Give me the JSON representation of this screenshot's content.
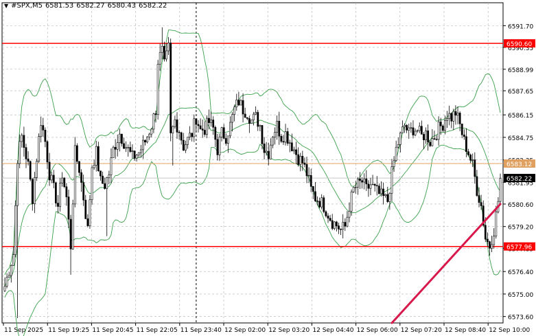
{
  "header": {
    "symbol": "#SPX,M5",
    "open": "6581.53",
    "high": "6582.27",
    "low": "6580.43",
    "close": "6582.22"
  },
  "colors": {
    "candle": "#000000",
    "bands": "#3aa04a",
    "level_line": "#ff0000",
    "current_price_line": "#c8c8c8",
    "orange_line": "#e0a060",
    "trendline": "#d8184a",
    "grid": "#b0b0b0",
    "tag_red": "#ff0000",
    "tag_orange": "#e0a060",
    "tag_black": "#000000"
  },
  "chart_data": {
    "type": "candlestick",
    "title": "",
    "xlabel": "",
    "ylabel": "",
    "ylim": [
      6573.2,
      6592.7
    ],
    "grid": true,
    "y_ticks": [
      "6591.70",
      "6590.35",
      "6588.99",
      "6587.65",
      "6586.15",
      "6584.75",
      "6583.35",
      "6581.95",
      "6580.60",
      "6579.20",
      "6577.85",
      "6576.40",
      "6575.00",
      "6573.60"
    ],
    "x_ticks": [
      "11 Sep 2025",
      "11 Sep 19:25",
      "11 Sep 20:45",
      "11 Sep 22:05",
      "11 Sep 23:40",
      "12 Sep 02:00",
      "12 Sep 03:20",
      "12 Sep 04:40",
      "12 Sep 06:00",
      "12 Sep 07:20",
      "12 Sep 08:40",
      "12 Sep 10:00"
    ],
    "horizontal_lines": [
      {
        "label": "6590.60",
        "value": 6590.6,
        "style": "red"
      },
      {
        "label": "6583.12",
        "value": 6583.12,
        "style": "orange"
      },
      {
        "label": "6582.22",
        "value": 6582.22,
        "style": "current"
      },
      {
        "label": "6577.96",
        "value": 6577.96,
        "style": "red"
      }
    ],
    "trendline": {
      "start_bar": 182,
      "start_value": 6573.2,
      "end_bar": 233,
      "end_value": 6580.6
    },
    "session_separator_bar": 90,
    "bar_count": 234,
    "anchors": [
      [
        0,
        6575.5
      ],
      [
        4,
        6577.5
      ],
      [
        6,
        6583.5
      ],
      [
        8,
        6584.8
      ],
      [
        11,
        6583.0
      ],
      [
        13,
        6581.0
      ],
      [
        15,
        6583.5
      ],
      [
        17,
        6585.8
      ],
      [
        19,
        6584.5
      ],
      [
        21,
        6582.5
      ],
      [
        23,
        6581.5
      ],
      [
        25,
        6580.5
      ],
      [
        27,
        6582.5
      ],
      [
        29,
        6581.0
      ],
      [
        31,
        6578.0
      ],
      [
        33,
        6583.8
      ],
      [
        35,
        6582.8
      ],
      [
        37,
        6581.0
      ],
      [
        39,
        6579.0
      ],
      [
        41,
        6583.0
      ],
      [
        43,
        6583.8
      ],
      [
        45,
        6582.0
      ],
      [
        47,
        6581.8
      ],
      [
        49,
        6582.5
      ],
      [
        51,
        6584.0
      ],
      [
        54,
        6585.0
      ],
      [
        57,
        6584.2
      ],
      [
        60,
        6583.5
      ],
      [
        63,
        6583.8
      ],
      [
        66,
        6584.5
      ],
      [
        69,
        6585.5
      ],
      [
        71,
        6586.5
      ],
      [
        72,
        6589.5
      ],
      [
        74,
        6590.1
      ],
      [
        75,
        6589.2
      ],
      [
        77,
        6590.3
      ],
      [
        78,
        6584.8
      ],
      [
        80,
        6585.8
      ],
      [
        82,
        6585.2
      ],
      [
        84,
        6584.2
      ],
      [
        86,
        6584.6
      ],
      [
        88,
        6585.0
      ],
      [
        90,
        6586.0
      ],
      [
        92,
        6585.2
      ],
      [
        94,
        6585.3
      ],
      [
        96,
        6585.7
      ],
      [
        98,
        6585.3
      ],
      [
        100,
        6584.0
      ],
      [
        102,
        6585.0
      ],
      [
        104,
        6584.8
      ],
      [
        106,
        6585.5
      ],
      [
        108,
        6586.5
      ],
      [
        110,
        6587.0
      ],
      [
        112,
        6586.5
      ],
      [
        114,
        6586.3
      ],
      [
        116,
        6585.8
      ],
      [
        118,
        6586.0
      ],
      [
        120,
        6585.5
      ],
      [
        122,
        6584.0
      ],
      [
        124,
        6583.8
      ],
      [
        126,
        6585.0
      ],
      [
        128,
        6585.5
      ],
      [
        130,
        6584.8
      ],
      [
        132,
        6585.0
      ],
      [
        134,
        6584.5
      ],
      [
        136,
        6584.0
      ],
      [
        138,
        6583.5
      ],
      [
        140,
        6583.2
      ],
      [
        142,
        6582.5
      ],
      [
        144,
        6581.5
      ],
      [
        146,
        6581.0
      ],
      [
        148,
        6580.8
      ],
      [
        150,
        6580.5
      ],
      [
        152,
        6580.0
      ],
      [
        154,
        6579.5
      ],
      [
        156,
        6579.3
      ],
      [
        158,
        6579.0
      ],
      [
        160,
        6579.2
      ],
      [
        162,
        6580.5
      ],
      [
        164,
        6581.5
      ],
      [
        166,
        6581.8
      ],
      [
        168,
        6582.0
      ],
      [
        170,
        6581.5
      ],
      [
        172,
        6581.8
      ],
      [
        174,
        6581.5
      ],
      [
        176,
        6581.2
      ],
      [
        178,
        6581.0
      ],
      [
        180,
        6580.8
      ],
      [
        182,
        6582.5
      ],
      [
        184,
        6584.0
      ],
      [
        186,
        6584.8
      ],
      [
        188,
        6585.5
      ],
      [
        190,
        6585.0
      ],
      [
        192,
        6585.3
      ],
      [
        194,
        6585.2
      ],
      [
        196,
        6584.8
      ],
      [
        198,
        6585.0
      ],
      [
        200,
        6584.5
      ],
      [
        202,
        6584.8
      ],
      [
        204,
        6585.3
      ],
      [
        206,
        6585.6
      ],
      [
        208,
        6586.2
      ],
      [
        210,
        6586.0
      ],
      [
        212,
        6586.3
      ],
      [
        214,
        6585.5
      ],
      [
        216,
        6584.5
      ],
      [
        218,
        6583.8
      ],
      [
        220,
        6583.0
      ],
      [
        222,
        6581.5
      ],
      [
        224,
        6580.5
      ],
      [
        226,
        6578.5
      ],
      [
        228,
        6578.0
      ],
      [
        230,
        6579.0
      ],
      [
        232,
        6580.8
      ],
      [
        233,
        6582.2
      ]
    ],
    "spikes": [
      [
        74,
        6591.6
      ],
      [
        6,
        6573.5
      ],
      [
        31,
        6576.2
      ],
      [
        48,
        6578.6
      ],
      [
        79,
        6583.0
      ]
    ]
  }
}
